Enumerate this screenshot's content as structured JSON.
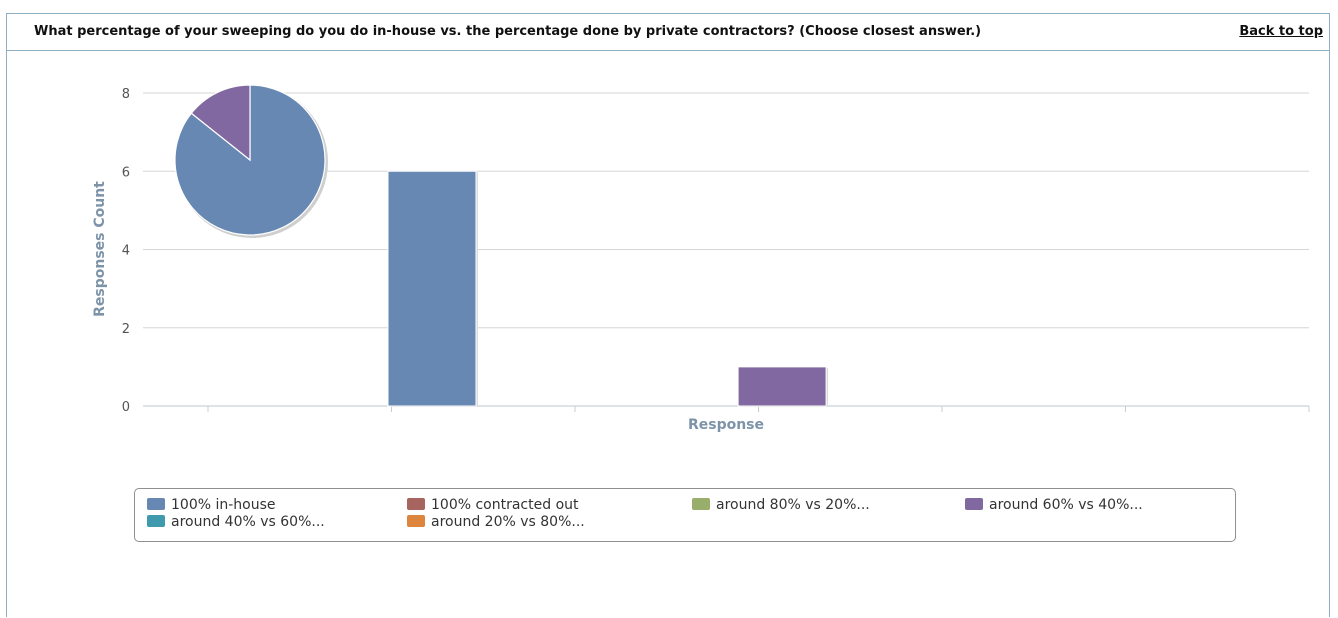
{
  "header": {
    "question": "What percentage of your sweeping do you do in-house vs. the percentage done by private contractors? (Choose closest answer.)",
    "back_link": "Back to top"
  },
  "chart_data": {
    "type": "bar",
    "xlabel": "Response",
    "ylabel": "Responses Count",
    "ylim": [
      0,
      8
    ],
    "yticks": [
      0,
      2,
      4,
      6,
      8
    ],
    "grid": true,
    "series": [
      {
        "name": "100% in-house",
        "color": "#6688b3",
        "value": 6
      },
      {
        "name": "100% contracted out",
        "color": "#a8655f",
        "value": 0
      },
      {
        "name": "around 80% vs 20%...",
        "color": "#9aae6c",
        "value": 0
      },
      {
        "name": "around 60% vs 40%...",
        "color": "#8168a0",
        "value": 1
      },
      {
        "name": "around 40% vs 60%...",
        "color": "#3f9aae",
        "value": 0
      },
      {
        "name": "around 20% vs 80%...",
        "color": "#dd853d",
        "value": 0
      }
    ],
    "legend_position": "bottom",
    "inset_pie": {
      "type": "pie",
      "slices": [
        {
          "name": "100% in-house",
          "value": 6,
          "color": "#6688b3"
        },
        {
          "name": "around 60% vs 40%...",
          "value": 1,
          "color": "#8168a0"
        }
      ]
    }
  }
}
